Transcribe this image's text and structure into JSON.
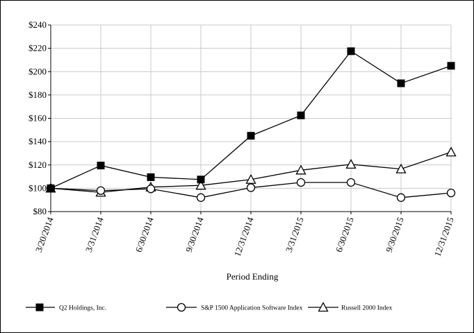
{
  "chart_data": {
    "type": "line",
    "title": "",
    "xlabel": "Period Ending",
    "ylabel": "",
    "categories": [
      "3/20/2014",
      "3/31/2014",
      "6/30/2014",
      "9/30/2014",
      "12/31/2014",
      "3/31/2015",
      "6/30/2015",
      "9/30/2015",
      "12/31/2015"
    ],
    "ylim": [
      80,
      240
    ],
    "yticks": [
      80,
      100,
      120,
      140,
      160,
      180,
      200,
      220,
      240
    ],
    "ytick_labels": [
      "$80",
      "$100",
      "$120",
      "$140",
      "$160",
      "$180",
      "$200",
      "$220",
      "$240"
    ],
    "grid": true,
    "legend_position": "bottom",
    "series": [
      {
        "name": "Q2 Holdings, Inc.",
        "marker": "filled-square",
        "values": [
          100,
          119.5,
          109.5,
          107.5,
          145,
          162.5,
          217.5,
          190,
          205
        ]
      },
      {
        "name": "S&P 1500 Application Software Index",
        "marker": "open-circle",
        "values": [
          100,
          98,
          99.5,
          92,
          100.5,
          105,
          105,
          92,
          96
        ]
      },
      {
        "name": "Russell 2000 Index",
        "marker": "open-triangle",
        "values": [
          100,
          96.5,
          101,
          102.5,
          107.5,
          115.5,
          120.5,
          116.5,
          131
        ]
      }
    ]
  }
}
